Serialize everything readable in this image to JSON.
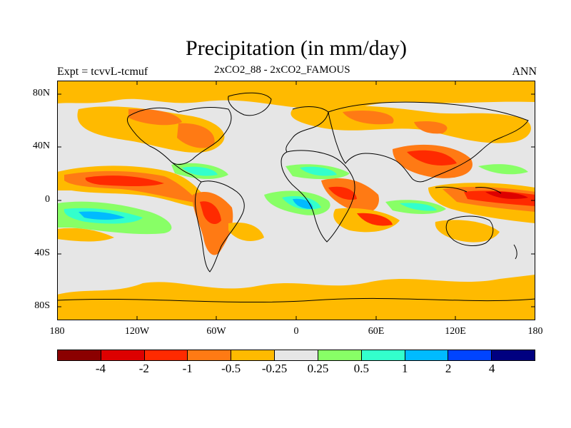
{
  "title": "Precipitation (in mm/day)",
  "left_string": "Expt = tcvvL-tcmuf",
  "center_string": "2xCO2_88 - 2xCO2_FAMOUS",
  "right_string": "ANN",
  "lat_ticks": [
    "80N",
    "40N",
    "0",
    "40S",
    "80S"
  ],
  "lon_ticks": [
    "180",
    "120W",
    "60W",
    "0",
    "60E",
    "120E",
    "180"
  ],
  "legend": {
    "labels": [
      "-4",
      "-2",
      "-1",
      "-0.5",
      "-0.25",
      "0.25",
      "0.5",
      "1",
      "2",
      "4"
    ],
    "colors": [
      "#8b0000",
      "#dd0000",
      "#ff2a00",
      "#ff7a14",
      "#ffba00",
      "#e6e6e6",
      "#88ff66",
      "#33ffcc",
      "#00bbff",
      "#0044ff",
      "#000080"
    ]
  }
}
